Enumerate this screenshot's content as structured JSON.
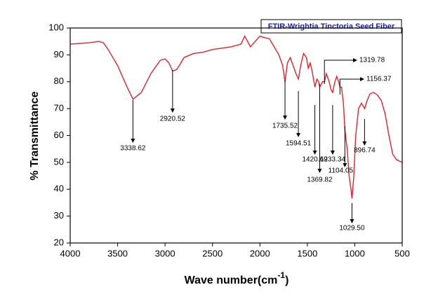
{
  "chart_data": {
    "type": "line",
    "legend_title": "FTIR-Wrightia Tinctoria Seed Fiber",
    "ylabel": "% Transmittance",
    "xlabel": "Wave number(cm",
    "xlabel_sup": "-1",
    "xlabel_end": ")",
    "xlim": [
      4000,
      500
    ],
    "ylim": [
      20,
      100
    ],
    "xticks": [
      4000,
      3500,
      3000,
      2500,
      2000,
      1500,
      1000,
      500
    ],
    "yticks": [
      20,
      30,
      40,
      50,
      60,
      70,
      80,
      90,
      100
    ],
    "series": [
      {
        "color": "#e8202a",
        "x": [
          4000,
          3800,
          3700,
          3650,
          3600,
          3500,
          3400,
          3338,
          3250,
          3150,
          3050,
          3000,
          2960,
          2920,
          2880,
          2850,
          2800,
          2700,
          2600,
          2500,
          2400,
          2300,
          2200,
          2160,
          2130,
          2100,
          2050,
          2000,
          1960,
          1900,
          1850,
          1800,
          1760,
          1735,
          1710,
          1680,
          1650,
          1620,
          1594,
          1570,
          1540,
          1510,
          1490,
          1470,
          1450,
          1430,
          1420,
          1400,
          1380,
          1369,
          1340,
          1319,
          1300,
          1270,
          1250,
          1233,
          1210,
          1190,
          1170,
          1156,
          1140,
          1120,
          1104,
          1080,
          1060,
          1040,
          1029,
          1010,
          990,
          960,
          930,
          896,
          870,
          840,
          800,
          760,
          720,
          680,
          640,
          600,
          560,
          530,
          500
        ],
        "values": [
          94,
          94.5,
          95,
          94.5,
          92,
          86,
          78,
          73.5,
          76,
          83,
          88,
          88.5,
          87,
          84,
          84.5,
          86,
          89,
          90.5,
          91,
          92,
          92.5,
          93,
          94,
          97,
          95,
          93,
          95,
          97,
          96.5,
          96,
          93,
          90,
          86,
          80,
          87,
          89,
          86,
          83,
          81,
          86,
          90.5,
          89,
          85,
          87,
          84,
          80,
          78,
          81,
          80,
          78,
          80,
          80,
          83,
          80,
          77,
          76,
          80,
          82,
          80,
          78,
          78,
          72,
          62,
          55,
          45,
          40,
          36.5,
          45,
          60,
          70,
          72,
          70,
          73,
          75.5,
          76,
          75,
          73,
          68,
          60,
          53,
          51,
          50.5,
          50
        ]
      }
    ],
    "annotations": [
      {
        "text": "3338.62",
        "x": 3338.62
      },
      {
        "text": "2920.52",
        "x": 2920.52
      },
      {
        "text": "1735.52",
        "x": 1735.52
      },
      {
        "text": "1594.51",
        "x": 1594.51
      },
      {
        "text": "1420.69",
        "x": 1420.69
      },
      {
        "text": "1369.82",
        "x": 1369.82
      },
      {
        "text": "1319.78",
        "x": 1319.78
      },
      {
        "text": "1233.34",
        "x": 1233.34
      },
      {
        "text": "1156.37",
        "x": 1156.37
      },
      {
        "text": "1104.05",
        "x": 1104.05
      },
      {
        "text": "1029.50",
        "x": 1029.5
      },
      {
        "text": "896.74",
        "x": 896.74
      }
    ]
  }
}
